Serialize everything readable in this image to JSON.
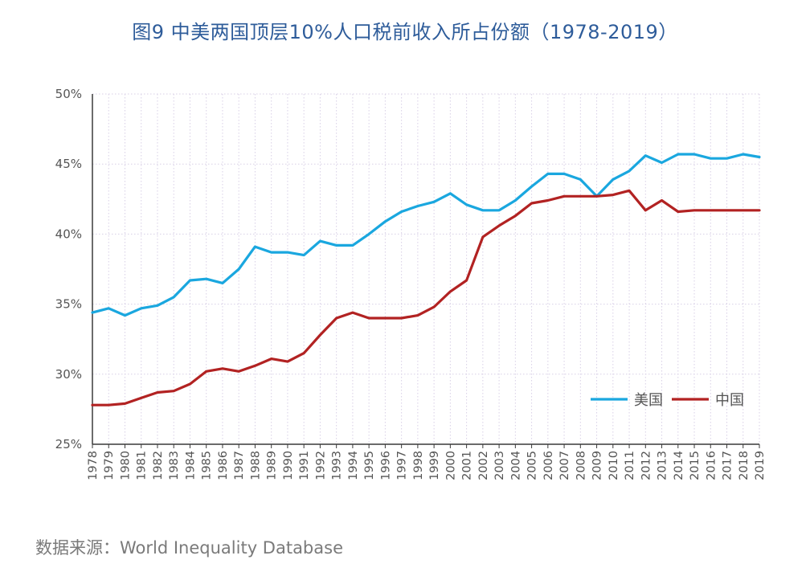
{
  "title": "图9  中美两国顶层10%人口税前收入所占份额（1978-2019）",
  "source": "数据来源：World Inequality Database",
  "chart_data": {
    "type": "line",
    "ylim": [
      25,
      50
    ],
    "yticks": [
      25,
      30,
      35,
      40,
      45,
      50
    ],
    "ytick_labels": [
      "25%",
      "30%",
      "35%",
      "40%",
      "45%",
      "50%"
    ],
    "grid": true,
    "legend_position": "bottom-right",
    "x": [
      "1978",
      "1979",
      "1980",
      "1981",
      "1982",
      "1983",
      "1984",
      "1985",
      "1986",
      "1987",
      "1988",
      "1989",
      "1990",
      "1991",
      "1992",
      "1993",
      "1994",
      "1995",
      "1996",
      "1997",
      "1998",
      "1999",
      "2000",
      "2001",
      "2002",
      "2003",
      "2004",
      "2005",
      "2006",
      "2007",
      "2008",
      "2009",
      "2010",
      "2011",
      "2012",
      "2013",
      "2014",
      "2015",
      "2016",
      "2017",
      "2018",
      "2019"
    ],
    "series": [
      {
        "name": "美国",
        "color": "#1AA7DF",
        "values": [
          34.4,
          34.7,
          34.2,
          34.7,
          34.9,
          35.5,
          36.7,
          36.8,
          36.5,
          37.5,
          39.1,
          38.7,
          38.7,
          38.5,
          39.5,
          39.2,
          39.2,
          40.0,
          40.9,
          41.6,
          42.0,
          42.3,
          42.9,
          42.1,
          41.7,
          41.7,
          42.4,
          43.4,
          44.3,
          44.3,
          43.9,
          42.7,
          43.9,
          44.5,
          45.6,
          45.1,
          45.7,
          45.7,
          45.4,
          45.4,
          45.7,
          45.5
        ]
      },
      {
        "name": "中国",
        "color": "#B22222",
        "values": [
          27.8,
          27.8,
          27.9,
          28.3,
          28.7,
          28.8,
          29.3,
          30.2,
          30.4,
          30.2,
          30.6,
          31.1,
          30.9,
          31.5,
          32.8,
          34.0,
          34.4,
          34.0,
          34.0,
          34.0,
          34.2,
          34.8,
          35.9,
          36.7,
          39.8,
          40.6,
          41.3,
          42.2,
          42.4,
          42.7,
          42.7,
          42.7,
          42.8,
          43.1,
          41.7,
          42.4,
          41.6,
          41.7,
          41.7,
          41.7,
          41.7,
          41.7
        ]
      }
    ]
  }
}
